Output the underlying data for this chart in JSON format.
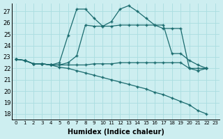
{
  "xlabel": "Humidex (Indice chaleur)",
  "xlim": [
    -0.5,
    23.5
  ],
  "ylim": [
    17.5,
    27.7
  ],
  "yticks": [
    18,
    19,
    20,
    21,
    22,
    23,
    24,
    25,
    26,
    27
  ],
  "xticks": [
    0,
    1,
    2,
    3,
    4,
    5,
    6,
    7,
    8,
    9,
    10,
    11,
    12,
    13,
    14,
    15,
    16,
    17,
    18,
    19,
    20,
    21,
    22,
    23
  ],
  "bg_color": "#cdeef0",
  "grid_color": "#aadde0",
  "line_color": "#1a6b6e",
  "lines": [
    {
      "x": [
        0,
        1,
        2,
        3,
        4,
        5,
        6,
        7,
        8,
        9,
        10,
        11,
        12,
        13,
        14,
        15,
        16,
        17,
        18,
        19,
        20,
        21,
        22
      ],
      "y": [
        22.8,
        22.7,
        22.4,
        22.4,
        22.3,
        22.5,
        24.9,
        27.2,
        27.2,
        26.4,
        25.7,
        26.1,
        27.2,
        27.5,
        27.0,
        26.4,
        25.8,
        25.5,
        25.5,
        25.5,
        22.0,
        21.8,
        22.0
      ]
    },
    {
      "x": [
        0,
        1,
        2,
        3,
        4,
        5,
        6,
        7,
        8,
        9,
        10,
        11,
        12,
        13,
        14,
        15,
        16,
        17,
        18,
        19,
        20,
        21,
        22
      ],
      "y": [
        22.8,
        22.7,
        22.4,
        22.4,
        22.3,
        22.3,
        22.5,
        23.1,
        25.8,
        25.7,
        25.7,
        25.7,
        25.8,
        25.8,
        25.8,
        25.8,
        25.8,
        25.8,
        23.3,
        23.3,
        22.7,
        22.3,
        22.0
      ]
    },
    {
      "x": [
        0,
        1,
        2,
        3,
        4,
        5,
        6,
        7,
        8,
        9,
        10,
        11,
        12,
        13,
        14,
        15,
        16,
        17,
        18,
        19,
        20,
        21,
        22
      ],
      "y": [
        22.8,
        22.7,
        22.4,
        22.4,
        22.3,
        22.3,
        22.3,
        22.3,
        22.3,
        22.4,
        22.4,
        22.4,
        22.5,
        22.5,
        22.5,
        22.5,
        22.5,
        22.5,
        22.5,
        22.5,
        22.0,
        22.0,
        22.0
      ]
    },
    {
      "x": [
        0,
        1,
        2,
        3,
        4,
        5,
        6,
        7,
        8,
        9,
        10,
        11,
        12,
        13,
        14,
        15,
        16,
        17,
        18,
        19,
        20,
        21,
        22
      ],
      "y": [
        22.8,
        22.7,
        22.4,
        22.4,
        22.3,
        22.1,
        22.0,
        21.8,
        21.6,
        21.4,
        21.2,
        21.0,
        20.8,
        20.6,
        20.4,
        20.2,
        19.9,
        19.7,
        19.4,
        19.1,
        18.8,
        18.3,
        18.0
      ]
    }
  ]
}
